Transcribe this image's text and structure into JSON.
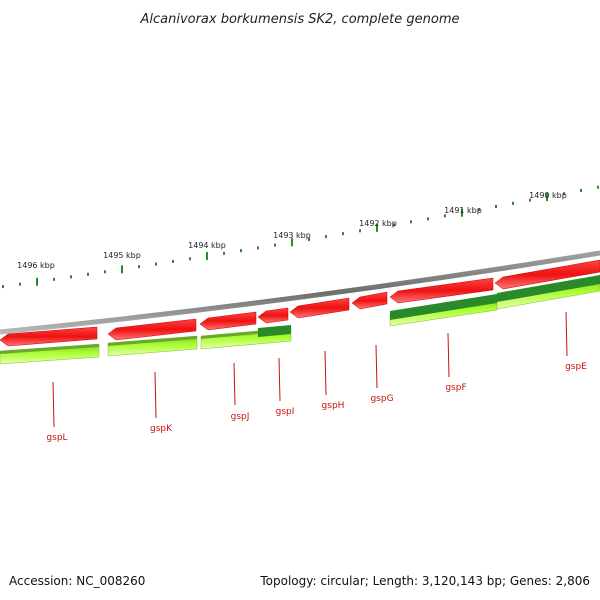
{
  "title": "Alcanivorax borkumensis SK2, complete genome",
  "accession_label": "Accession: NC_008260",
  "stats_label": "Topology: circular; Length: 3,120,143 bp; Genes: 2,806",
  "colors": {
    "backbone": "#808080",
    "forward_gene": "#ee1111",
    "forward_gene_shadow": "#ff8888",
    "reverse_track": "#aaee33",
    "reverse_track_light": "#ddff88",
    "reverse_track_dark": "#2a8a2a",
    "tick": "#2a8a2a",
    "gene_label": "#cc1111",
    "text": "#222222"
  },
  "scale_labels": [
    "1496 kbp",
    "1495 kbp",
    "1494 kbp",
    "1493 kbp",
    "1492 kbp",
    "1491 kbp",
    "1490 kbp"
  ],
  "genes": [
    {
      "name": "gspL"
    },
    {
      "name": "gspK"
    },
    {
      "name": "gspJ"
    },
    {
      "name": "gspI"
    },
    {
      "name": "gspH"
    },
    {
      "name": "gspG"
    },
    {
      "name": "gspF"
    },
    {
      "name": "gspE"
    }
  ]
}
